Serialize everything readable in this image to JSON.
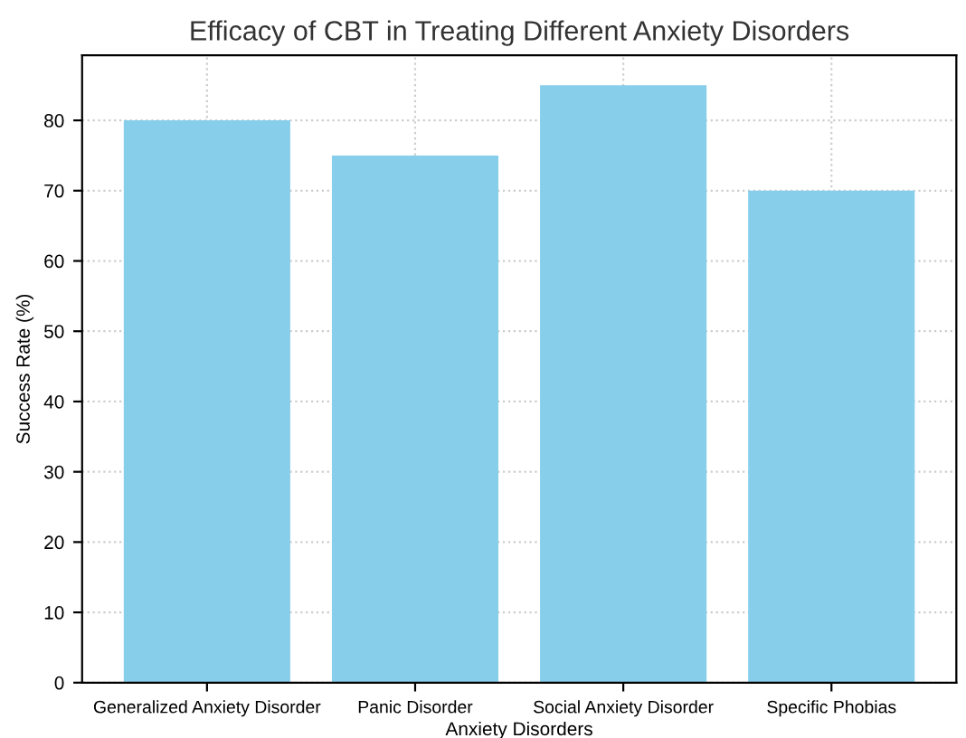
{
  "chart_data": {
    "type": "bar",
    "title": "Efficacy of CBT in Treating Different Anxiety Disorders",
    "xlabel": "Anxiety Disorders",
    "ylabel": "Success Rate (%)",
    "categories": [
      "Generalized Anxiety Disorder",
      "Panic Disorder",
      "Social Anxiety Disorder",
      "Specific Phobias"
    ],
    "values": [
      80,
      75,
      85,
      70
    ],
    "color": "#87ceeb",
    "ylim": [
      0,
      89.25
    ],
    "yticks": [
      0,
      10,
      20,
      30,
      40,
      50,
      60,
      70,
      80
    ],
    "grid": true
  }
}
